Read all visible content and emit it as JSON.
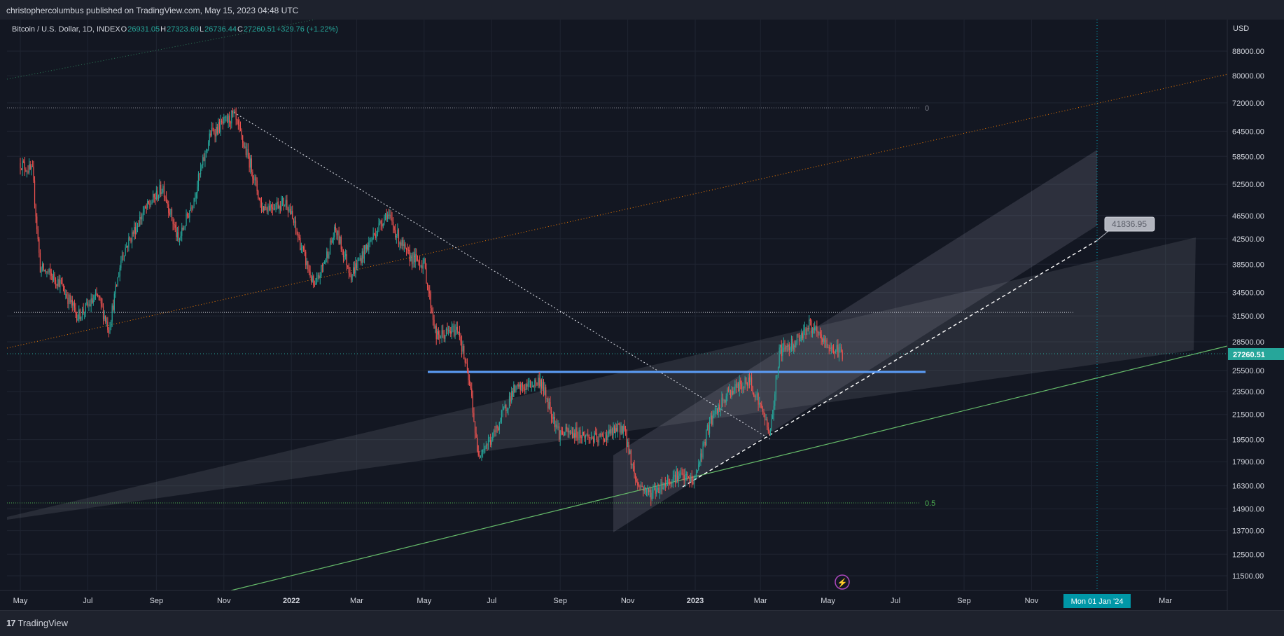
{
  "header": {
    "published": "christophercolumbus published on TradingView.com, May 15, 2023 04:48 UTC"
  },
  "legend": {
    "symbol": "Bitcoin / U.S. Dollar, 1D, INDEX",
    "o_label": "O",
    "o_value": "26931.05",
    "h_label": "H",
    "h_value": "27323.69",
    "l_label": "L",
    "l_value": "26736.44",
    "c_label": "C",
    "c_value": "27260.51",
    "change": "+329.76 (+1.22%)"
  },
  "footer": {
    "brand": "TradingView",
    "logo": "17"
  },
  "colors": {
    "background": "#131722",
    "up": "#26a69a",
    "down": "#ef5350",
    "price_badge": "#26a69a",
    "date_badge": "#0097a7",
    "fib_zero": "#787b86",
    "fib_half": "#4caf50",
    "support_blue": "#2962ff",
    "orange_line": "#f57c00",
    "green_line": "#66bb6a"
  },
  "chart_data": {
    "type": "candlestick",
    "title": "Bitcoin / U.S. Dollar, 1D, INDEX",
    "currency": "USD",
    "last_price": "27260.51",
    "projection_label": "41836.95",
    "crosshair_date": "Mon 01 Jan '24",
    "fib_levels": [
      {
        "label": "0",
        "price": 69000
      },
      {
        "label": "0.5",
        "price": 15400
      }
    ],
    "y_axis": {
      "scale": "log",
      "ticks": [
        88000,
        80000,
        72000,
        64500,
        58500,
        52500,
        46500,
        42500,
        38500,
        34500,
        31500,
        28500,
        25500,
        23500,
        21500,
        19500,
        17900,
        16300,
        14900,
        13700,
        12500,
        11500
      ],
      "tick_labels": [
        "88000.00",
        "80000.00",
        "72000.00",
        "64500.00",
        "58500.00",
        "52500.00",
        "46500.00",
        "42500.00",
        "38500.00",
        "34500.00",
        "31500.00",
        "28500.00",
        "25500.00",
        "23500.00",
        "21500.00",
        "19500.00",
        "17900.00",
        "16300.00",
        "14900.00",
        "13700.00",
        "12500.00",
        "11500.00"
      ]
    },
    "x_axis": {
      "tick_labels": [
        "May",
        "Jul",
        "Sep",
        "Nov",
        "2022",
        "Mar",
        "May",
        "Jul",
        "Sep",
        "Nov",
        "2023",
        "Mar",
        "May",
        "Jul",
        "Sep",
        "Nov",
        "Mar"
      ],
      "bold": [
        false,
        false,
        false,
        false,
        true,
        false,
        false,
        false,
        false,
        false,
        true,
        false,
        false,
        false,
        false,
        false,
        false
      ]
    },
    "price_path": [
      [
        "2021-05-01",
        57000
      ],
      [
        "2021-05-12",
        55000
      ],
      [
        "2021-05-19",
        38000
      ],
      [
        "2021-06-05",
        36000
      ],
      [
        "2021-06-22",
        31500
      ],
      [
        "2021-07-10",
        34000
      ],
      [
        "2021-07-20",
        30000
      ],
      [
        "2021-08-01",
        40000
      ],
      [
        "2021-08-20",
        47000
      ],
      [
        "2021-09-07",
        52000
      ],
      [
        "2021-09-21",
        42000
      ],
      [
        "2021-10-05",
        50000
      ],
      [
        "2021-10-20",
        64000
      ],
      [
        "2021-11-10",
        68500
      ],
      [
        "2021-11-26",
        56000
      ],
      [
        "2021-12-05",
        48000
      ],
      [
        "2021-12-28",
        49000
      ],
      [
        "2022-01-22",
        35000
      ],
      [
        "2022-02-10",
        44000
      ],
      [
        "2022-02-24",
        37000
      ],
      [
        "2022-03-28",
        47000
      ],
      [
        "2022-04-15",
        40000
      ],
      [
        "2022-05-01",
        38500
      ],
      [
        "2022-05-12",
        29000
      ],
      [
        "2022-06-01",
        30000
      ],
      [
        "2022-06-13",
        23000
      ],
      [
        "2022-06-18",
        18500
      ],
      [
        "2022-07-01",
        19500
      ],
      [
        "2022-07-20",
        23500
      ],
      [
        "2022-08-14",
        24500
      ],
      [
        "2022-08-31",
        20000
      ],
      [
        "2022-09-15",
        20000
      ],
      [
        "2022-10-05",
        19500
      ],
      [
        "2022-10-28",
        20500
      ],
      [
        "2022-11-09",
        16500
      ],
      [
        "2022-11-21",
        15800
      ],
      [
        "2022-12-15",
        17000
      ],
      [
        "2022-12-31",
        16600
      ],
      [
        "2023-01-14",
        20800
      ],
      [
        "2023-02-01",
        23500
      ],
      [
        "2023-02-20",
        24500
      ],
      [
        "2023-03-10",
        20000
      ],
      [
        "2023-03-18",
        27500
      ],
      [
        "2023-04-01",
        28500
      ],
      [
        "2023-04-14",
        30400
      ],
      [
        "2023-05-01",
        28000
      ],
      [
        "2023-05-14",
        27260
      ]
    ]
  }
}
